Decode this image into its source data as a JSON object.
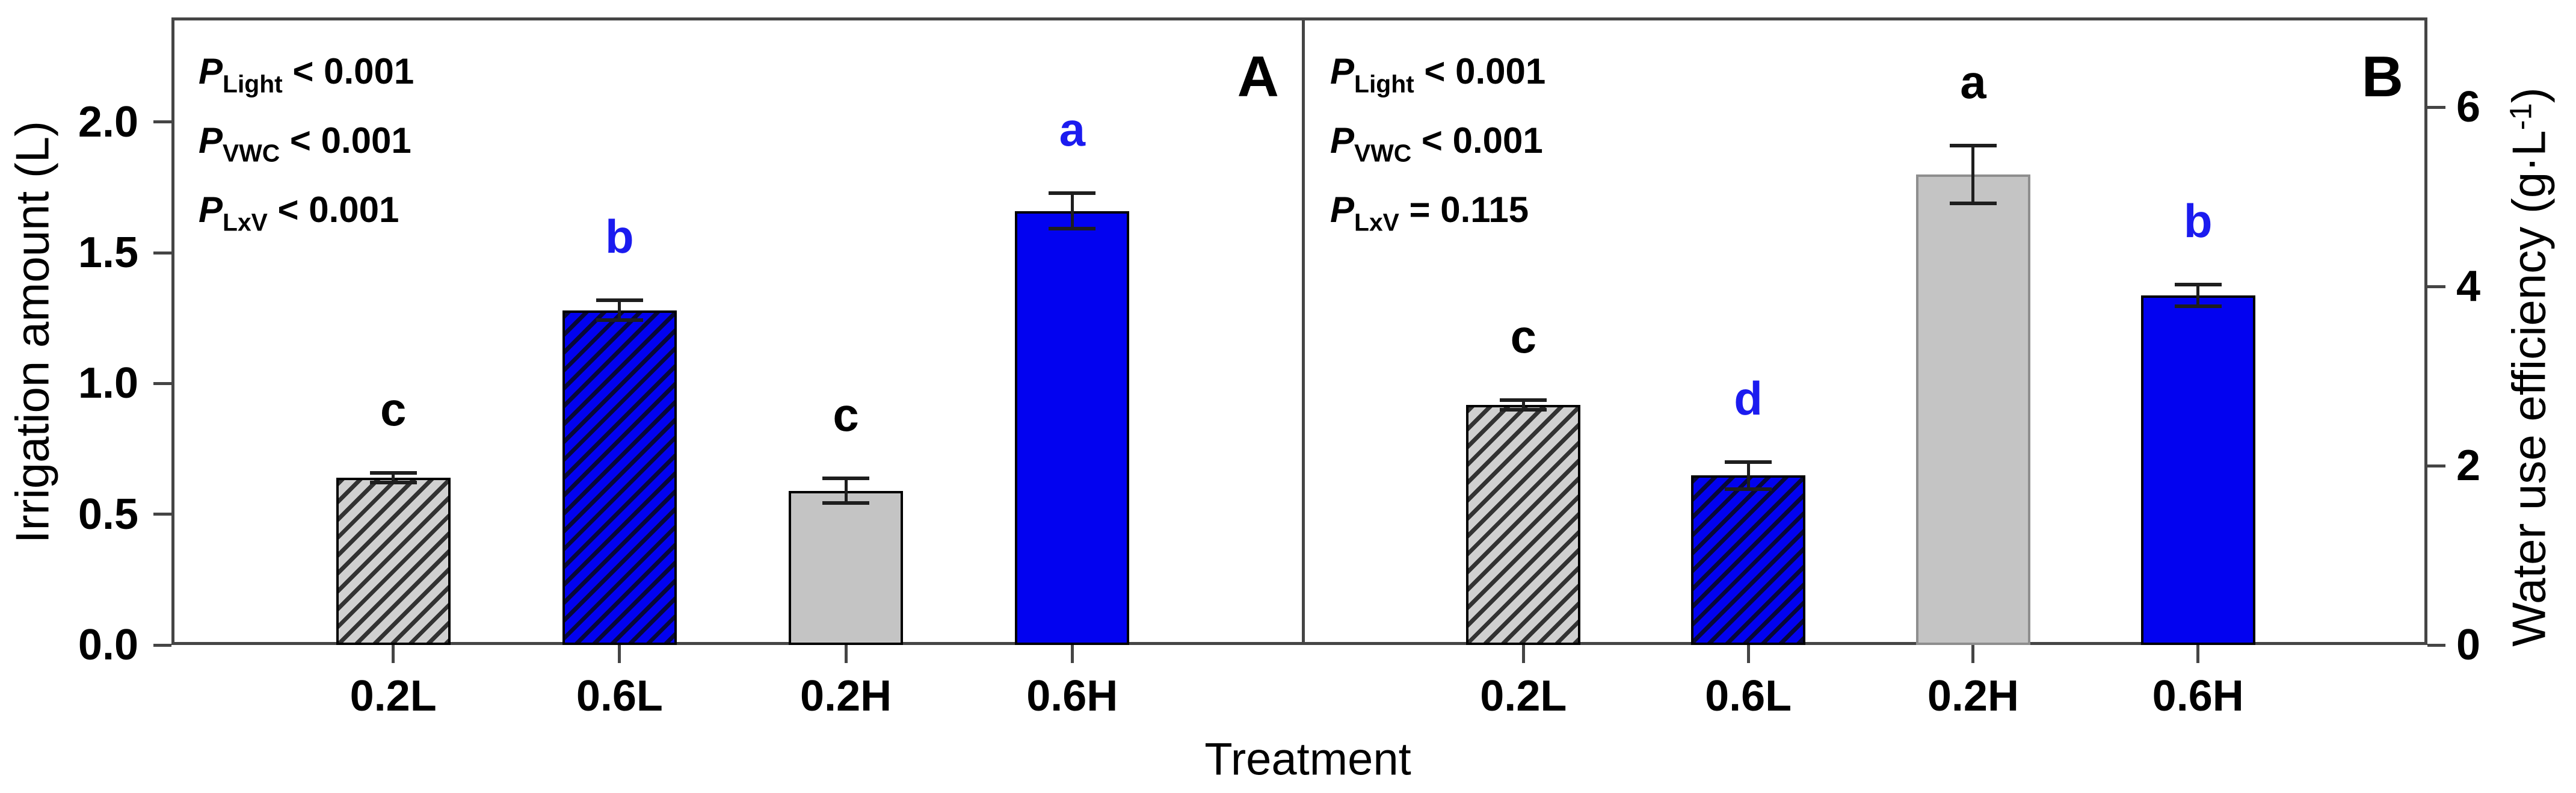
{
  "axes": {
    "x": {
      "label": "Treatment",
      "categories": [
        "0.2L",
        "0.6L",
        "0.2H",
        "0.6H"
      ]
    },
    "y_left": {
      "label": "Irrigation amount (L)",
      "tick_labels": [
        "0.0",
        "0.5",
        "1.0",
        "1.5",
        "2.0"
      ]
    },
    "y_right": {
      "label_pre": "Water use efficiency (g·L",
      "label_sup": "-1",
      "label_post": ")",
      "tick_labels": [
        "0",
        "2",
        "4",
        "6"
      ]
    }
  },
  "colors": {
    "blue_bar": "#0202f0",
    "gray_hatched_bar": "#d0d0d0",
    "gray_solid_bar": "#c4c4c4",
    "hatch_line": "rgba(10,10,10,0.8)",
    "bar_border_black": "#000000",
    "bar_border_gray": "#8e8e8e",
    "sig_blue": "#1b1bef",
    "sig_black": "#000000",
    "frame": "#454545",
    "error_bar": "#1e1e1e"
  },
  "chart_data": [
    {
      "type": "bar",
      "panel_letter": "A",
      "ylabel": "Irrigation amount (L)",
      "ylabel_side": "left",
      "ylim": [
        0,
        2.4
      ],
      "yticks": [
        0,
        0.5,
        1.0,
        1.5,
        2.0
      ],
      "ytick_labels": [
        "0.0",
        "0.5",
        "1.0",
        "1.5",
        "2.0"
      ],
      "grid": false,
      "legend": false,
      "categories": [
        "0.2L",
        "0.6L",
        "0.2H",
        "0.6H"
      ],
      "values": [
        0.64,
        1.28,
        0.59,
        1.66
      ],
      "errors": [
        0.02,
        0.04,
        0.05,
        0.07
      ],
      "sig_letters": [
        "c",
        "b",
        "c",
        "a"
      ],
      "sig_letter_colors": [
        "black",
        "blue",
        "black",
        "blue"
      ],
      "bar_styles": [
        {
          "fill": "gray_hatched",
          "hatch": true,
          "border": "black"
        },
        {
          "fill": "blue",
          "hatch": true,
          "border": "black"
        },
        {
          "fill": "gray_solid",
          "hatch": false,
          "border": "black"
        },
        {
          "fill": "blue",
          "hatch": false,
          "border": "black"
        }
      ],
      "p_values": [
        {
          "symbol": "P",
          "factor": "Light",
          "relation": "<",
          "value": "0.001"
        },
        {
          "symbol": "P",
          "factor": "VWC",
          "relation": "<",
          "value": "0.001"
        },
        {
          "symbol": "P",
          "factor": "LxV",
          "relation": "<",
          "value": "0.001"
        }
      ]
    },
    {
      "type": "bar",
      "panel_letter": "B",
      "ylabel": "Water use efficiency (g·L⁻¹)",
      "ylabel_side": "right",
      "ylim": [
        0,
        7.0
      ],
      "yticks": [
        0,
        2,
        4,
        6
      ],
      "ytick_labels": [
        "0",
        "2",
        "4",
        "6"
      ],
      "grid": false,
      "legend": false,
      "categories": [
        "0.2L",
        "0.6L",
        "0.2H",
        "0.6H"
      ],
      "values": [
        2.68,
        1.89,
        5.25,
        3.9
      ],
      "errors": [
        0.06,
        0.16,
        0.33,
        0.13
      ],
      "sig_letters": [
        "c",
        "d",
        "a",
        "b"
      ],
      "sig_letter_colors": [
        "black",
        "blue",
        "black",
        "blue"
      ],
      "bar_styles": [
        {
          "fill": "gray_hatched",
          "hatch": true,
          "border": "black"
        },
        {
          "fill": "blue",
          "hatch": true,
          "border": "black"
        },
        {
          "fill": "gray_solid",
          "hatch": false,
          "border": "gray"
        },
        {
          "fill": "blue",
          "hatch": false,
          "border": "black"
        }
      ],
      "p_values": [
        {
          "symbol": "P",
          "factor": "Light",
          "relation": "<",
          "value": "0.001"
        },
        {
          "symbol": "P",
          "factor": "VWC",
          "relation": "<",
          "value": "0.001"
        },
        {
          "symbol": "P",
          "factor": "LxV",
          "relation": "=",
          "value": "0.115"
        }
      ]
    }
  ]
}
